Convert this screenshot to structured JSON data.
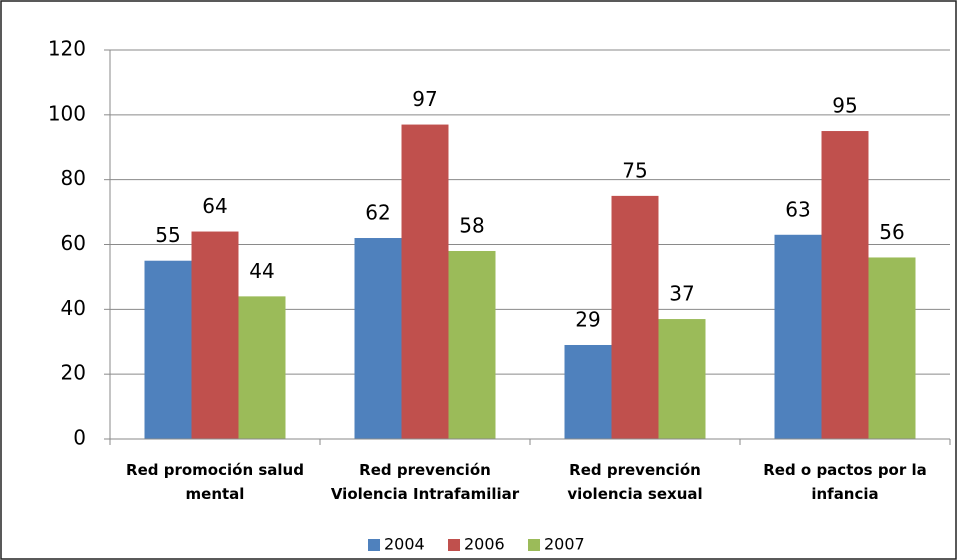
{
  "chart_data": {
    "type": "bar",
    "categories": [
      "Red promoción salud mental",
      "Red prevención Violencia Intrafamiliar",
      "Red prevención violencia sexual",
      "Red o pactos por la infancia"
    ],
    "series": [
      {
        "name": "2004",
        "color": "#4f81bd",
        "values": [
          55,
          62,
          29,
          63
        ]
      },
      {
        "name": "2006",
        "color": "#c0504d",
        "values": [
          64,
          97,
          75,
          95
        ]
      },
      {
        "name": "2007",
        "color": "#9bbb59",
        "values": [
          44,
          58,
          37,
          56
        ]
      }
    ],
    "ylim": [
      0,
      120
    ],
    "yticks": [
      0,
      20,
      40,
      60,
      80,
      100,
      120
    ],
    "grid": true,
    "legend": "bottom"
  }
}
